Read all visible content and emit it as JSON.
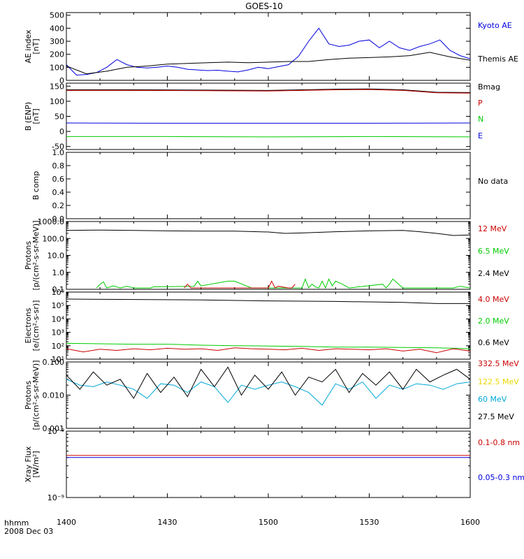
{
  "title": "GOES-10",
  "footer": {
    "time_label": "hhmm",
    "date_label": "2008 Dec 03"
  },
  "x_axis": {
    "range_minutes": [
      0,
      120
    ],
    "tick_values": [
      0,
      30,
      60,
      90,
      120
    ],
    "tick_labels": [
      "1400",
      "1430",
      "1500",
      "1530",
      "1600"
    ]
  },
  "colors": {
    "black": "#000000",
    "red": "#cc0000",
    "green": "#00cc00",
    "blue": "#0000dd",
    "cyan": "#00a8d8",
    "yellow": "#e8d800"
  },
  "panels": [
    {
      "id": "ae",
      "ylabel": [
        "AE index",
        "[nT]"
      ],
      "scale": "linear",
      "ylim": [
        0,
        520
      ],
      "yticks": [
        0,
        100,
        200,
        300,
        400,
        500
      ],
      "ytick_labels": [
        "0",
        "100",
        "200",
        "300",
        "400",
        "500"
      ],
      "legend": [
        {
          "text": "Kyoto AE",
          "color": "#0000dd"
        },
        {
          "text": "Themis AE",
          "color": "#000000"
        }
      ]
    },
    {
      "id": "bfield",
      "ylabel": [
        "B (ENP)",
        "[nT]"
      ],
      "scale": "linear",
      "ylim": [
        -60,
        160
      ],
      "yticks": [
        -50,
        0,
        50,
        100,
        150
      ],
      "ytick_labels": [
        "-50",
        "0",
        "50",
        "100",
        "150"
      ],
      "legend": [
        {
          "text": "Bmag",
          "color": "#000000"
        },
        {
          "text": "P",
          "color": "#cc0000"
        },
        {
          "text": "N",
          "color": "#00cc00"
        },
        {
          "text": "E",
          "color": "#0000dd"
        }
      ]
    },
    {
      "id": "bcomp",
      "ylabel": [
        "B comp"
      ],
      "scale": "linear",
      "ylim": [
        0,
        1
      ],
      "yticks": [
        0,
        0.2,
        0.4,
        0.6,
        0.8,
        1.0
      ],
      "ytick_labels": [
        "0.0",
        "0.2",
        "0.4",
        "0.6",
        "0.8",
        "1.0"
      ],
      "legend": [
        {
          "text": "No data",
          "color": "#000000"
        }
      ]
    },
    {
      "id": "protons_low",
      "ylabel": [
        "Protons",
        "[p/(cm²-s-sr-MeV)]"
      ],
      "scale": "log",
      "ylim": [
        0.1,
        1000
      ],
      "yticks": [
        0.1,
        1,
        10,
        100,
        1000
      ],
      "ytick_labels": [
        "0.1",
        "1.0",
        "10.0",
        "100.0",
        "1000.0"
      ],
      "legend": [
        {
          "text": "12 MeV",
          "color": "#cc0000"
        },
        {
          "text": "6.5 MeV",
          "color": "#00cc00"
        },
        {
          "text": "2.4 MeV",
          "color": "#000000"
        }
      ]
    },
    {
      "id": "electrons",
      "ylabel": [
        "Electrons",
        "[e/(cm²-s-sr)]"
      ],
      "scale": "log",
      "ylim": [
        10,
        1000000
      ],
      "yticks": [
        10,
        100,
        1000,
        10000,
        100000,
        1000000
      ],
      "ytick_labels": [
        "10¹",
        "10²",
        "10³",
        "10⁴",
        "10⁵",
        "10⁶"
      ],
      "legend": [
        {
          "text": "4.0 MeV",
          "color": "#cc0000"
        },
        {
          "text": "2.0 MeV",
          "color": "#00cc00"
        },
        {
          "text": "0.6 MeV",
          "color": "#000000"
        }
      ]
    },
    {
      "id": "protons_high",
      "ylabel": [
        "Protons",
        "[p/(cm²-s-sr-MeV)]"
      ],
      "scale": "log",
      "ylim": [
        0.001,
        0.1
      ],
      "yticks": [
        0.001,
        0.01,
        0.1
      ],
      "ytick_labels": [
        "0.001",
        "0.010",
        "0.100"
      ],
      "legend": [
        {
          "text": "332.5 MeV",
          "color": "#cc0000"
        },
        {
          "text": "122.5 MeV",
          "color": "#e8d800"
        },
        {
          "text": "60 MeV",
          "color": "#00a8d8"
        },
        {
          "text": "27.5 MeV",
          "color": "#000000"
        }
      ]
    },
    {
      "id": "xray",
      "ylabel": [
        "Xray Flux",
        "[W/m²]"
      ],
      "scale": "log",
      "ylim": [
        1e-09,
        1e-08
      ],
      "yticks": [
        1e-09,
        1e-08
      ],
      "ytick_labels": [
        "10⁻⁹",
        "10⁻⁸"
      ],
      "legend": [
        {
          "text": "0.1-0.8 nm",
          "color": "#cc0000"
        },
        {
          "text": "0.05-0.3 nm",
          "color": "#0000dd"
        }
      ]
    }
  ],
  "chart_data": {
    "type": "line",
    "title": "GOES-10",
    "x_unit": "minutes after 1400 UT",
    "series": [
      {
        "panel": "ae",
        "name": "Kyoto AE",
        "color": "#0000dd",
        "x": [
          0,
          3,
          6,
          9,
          12,
          15,
          18,
          21,
          24,
          27,
          30,
          33,
          36,
          39,
          42,
          45,
          48,
          51,
          54,
          57,
          60,
          63,
          66,
          69,
          72,
          75,
          78,
          81,
          84,
          87,
          90,
          93,
          96,
          99,
          102,
          105,
          108,
          111,
          114,
          117,
          120
        ],
        "y": [
          120,
          40,
          45,
          60,
          100,
          160,
          120,
          100,
          95,
          100,
          110,
          100,
          85,
          80,
          75,
          78,
          70,
          65,
          80,
          100,
          90,
          105,
          120,
          185,
          300,
          400,
          280,
          260,
          270,
          300,
          310,
          250,
          300,
          250,
          230,
          260,
          280,
          310,
          230,
          190,
          165
        ]
      },
      {
        "panel": "ae",
        "name": "Themis AE",
        "color": "#000000",
        "x": [
          0,
          6,
          12,
          18,
          24,
          30,
          36,
          42,
          48,
          54,
          60,
          66,
          72,
          78,
          84,
          90,
          96,
          102,
          108,
          114,
          120
        ],
        "y": [
          110,
          50,
          70,
          100,
          110,
          125,
          130,
          135,
          140,
          135,
          140,
          145,
          145,
          160,
          170,
          175,
          180,
          190,
          215,
          180,
          155
        ]
      },
      {
        "panel": "bfield",
        "name": "Bmag",
        "color": "#000000",
        "x": [
          0,
          20,
          40,
          60,
          80,
          90,
          100,
          110,
          120
        ],
        "y": [
          138,
          138,
          137,
          136,
          140,
          141,
          138,
          130,
          129
        ]
      },
      {
        "panel": "bfield",
        "name": "P",
        "color": "#cc0000",
        "x": [
          0,
          20,
          40,
          60,
          80,
          90,
          100,
          110,
          120
        ],
        "y": [
          136,
          136,
          135,
          134,
          138,
          139,
          136,
          128,
          127
        ]
      },
      {
        "panel": "bfield",
        "name": "N",
        "color": "#00cc00",
        "x": [
          0,
          30,
          60,
          90,
          120
        ],
        "y": [
          -17,
          -17,
          -18,
          -17,
          -18
        ]
      },
      {
        "panel": "bfield",
        "name": "E",
        "color": "#0000dd",
        "x": [
          0,
          30,
          60,
          90,
          120
        ],
        "y": [
          28,
          27,
          27,
          27,
          28
        ]
      },
      {
        "panel": "protons_low",
        "name": "2.4 MeV",
        "color": "#000000",
        "x": [
          0,
          10,
          20,
          30,
          40,
          50,
          60,
          65,
          70,
          80,
          90,
          100,
          105,
          110,
          115,
          120
        ],
        "y": [
          300,
          310,
          300,
          280,
          270,
          270,
          240,
          200,
          210,
          250,
          280,
          300,
          250,
          200,
          150,
          160
        ]
      },
      {
        "panel": "protons_low",
        "name": "6.5 MeV",
        "color": "#00cc00",
        "x": [
          9,
          10,
          11,
          12,
          14,
          16,
          18,
          20,
          22,
          24,
          25,
          26,
          38,
          39,
          40,
          48,
          50,
          55,
          70,
          71,
          72,
          73,
          74,
          75,
          76,
          77,
          78,
          79,
          80,
          82,
          84,
          94,
          95,
          96,
          97,
          100,
          115,
          117,
          120
        ],
        "y": [
          0.12,
          0.2,
          0.28,
          0.12,
          0.16,
          0.12,
          0.15,
          0.12,
          0.12,
          0.12,
          0.12,
          0.14,
          0.15,
          0.3,
          0.16,
          0.3,
          0.3,
          0.12,
          0.12,
          0.4,
          0.12,
          0.2,
          0.14,
          0.12,
          0.3,
          0.12,
          0.4,
          0.16,
          0.3,
          0.2,
          0.12,
          0.2,
          0.12,
          0.2,
          0.4,
          0.12,
          0.12,
          0.15,
          0.12
        ]
      },
      {
        "panel": "protons_low",
        "name": "12 MeV",
        "color": "#cc0000",
        "x": [
          35,
          36,
          37,
          60,
          61,
          62,
          63,
          66,
          67,
          68
        ],
        "y": [
          0.12,
          0.2,
          0.12,
          0.12,
          0.3,
          0.12,
          0.15,
          0.12,
          0.12,
          0.2
        ]
      },
      {
        "panel": "electrons",
        "name": "0.6 MeV",
        "color": "#000000",
        "x": [
          0,
          20,
          40,
          60,
          80,
          100,
          110,
          120
        ],
        "y": [
          300000,
          280000,
          260000,
          220000,
          200000,
          170000,
          140000,
          140000
        ]
      },
      {
        "panel": "electrons",
        "name": "2.0 MeV",
        "color": "#00cc00",
        "x": [
          0,
          10,
          20,
          30,
          40,
          50,
          60,
          70,
          80,
          90,
          100,
          110,
          115,
          120
        ],
        "y": [
          150,
          140,
          130,
          130,
          110,
          100,
          95,
          90,
          80,
          80,
          75,
          70,
          65,
          60
        ]
      },
      {
        "panel": "electrons",
        "name": "4.0 MeV",
        "color": "#cc0000",
        "x": [
          0,
          5,
          10,
          15,
          20,
          25,
          30,
          35,
          40,
          45,
          50,
          55,
          60,
          65,
          70,
          75,
          80,
          85,
          90,
          95,
          100,
          105,
          110,
          115,
          120
        ],
        "y": [
          60,
          35,
          55,
          45,
          60,
          50,
          65,
          55,
          60,
          45,
          70,
          60,
          55,
          50,
          65,
          45,
          60,
          55,
          50,
          60,
          40,
          55,
          30,
          60,
          40
        ]
      },
      {
        "panel": "protons_high",
        "name": "60 MeV",
        "color": "#00a8d8",
        "x": [
          0,
          4,
          8,
          12,
          16,
          20,
          24,
          28,
          32,
          36,
          40,
          44,
          48,
          52,
          56,
          60,
          64,
          68,
          72,
          76,
          80,
          84,
          88,
          92,
          96,
          100,
          104,
          108,
          112,
          116,
          120
        ],
        "y": [
          0.03,
          0.02,
          0.018,
          0.025,
          0.02,
          0.015,
          0.008,
          0.022,
          0.02,
          0.012,
          0.025,
          0.018,
          0.006,
          0.02,
          0.015,
          0.02,
          0.025,
          0.018,
          0.012,
          0.005,
          0.022,
          0.015,
          0.025,
          0.008,
          0.02,
          0.015,
          0.022,
          0.02,
          0.015,
          0.022,
          0.025
        ]
      },
      {
        "panel": "protons_high",
        "name": "27.5 MeV",
        "color": "#000000",
        "x": [
          0,
          4,
          8,
          12,
          16,
          20,
          24,
          28,
          32,
          36,
          40,
          44,
          48,
          52,
          56,
          60,
          64,
          68,
          72,
          76,
          80,
          84,
          88,
          92,
          96,
          100,
          104,
          108,
          112,
          116,
          120
        ],
        "y": [
          0.04,
          0.015,
          0.05,
          0.02,
          0.03,
          0.008,
          0.045,
          0.012,
          0.035,
          0.009,
          0.06,
          0.018,
          0.07,
          0.01,
          0.04,
          0.015,
          0.05,
          0.01,
          0.035,
          0.025,
          0.06,
          0.012,
          0.045,
          0.02,
          0.05,
          0.015,
          0.06,
          0.025,
          0.04,
          0.06,
          0.03
        ]
      },
      {
        "panel": "xray",
        "name": "0.1-0.8 nm",
        "color": "#cc0000",
        "x": [
          0,
          120
        ],
        "y": [
          4.3e-09,
          4.3e-09
        ]
      },
      {
        "panel": "xray",
        "name": "0.05-0.3 nm",
        "color": "#0000dd",
        "x": [
          0,
          120
        ],
        "y": [
          4e-09,
          4e-09
        ]
      }
    ]
  }
}
